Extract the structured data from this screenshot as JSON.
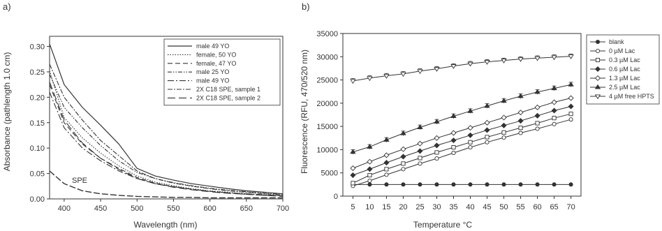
{
  "chart_data": [
    {
      "type": "line",
      "panel_label": "a)",
      "xlabel": "Wavelength  (nm)",
      "ylabel": "Absorbance (pathlength 1.0 cm)",
      "xlim": [
        380,
        700
      ],
      "ylim": [
        0.0,
        0.32
      ],
      "xticks": [
        400,
        450,
        500,
        550,
        600,
        650,
        700
      ],
      "yticks": [
        0.0,
        0.05,
        0.1,
        0.15,
        0.2,
        0.25,
        0.3
      ],
      "grid": false,
      "legend_position": "top-right",
      "annotation": "SPE",
      "series": [
        {
          "name": "male 49 YO",
          "x": [
            380,
            400,
            425,
            450,
            475,
            500,
            525,
            550,
            575,
            600,
            625,
            650,
            675,
            700
          ],
          "y": [
            0.305,
            0.225,
            0.18,
            0.145,
            0.108,
            0.06,
            0.045,
            0.037,
            0.03,
            0.025,
            0.02,
            0.016,
            0.013,
            0.01
          ]
        },
        {
          "name": "female, 50 YO",
          "x": [
            380,
            400,
            425,
            450,
            475,
            500,
            525,
            550,
            575,
            600,
            625,
            650,
            675,
            700
          ],
          "y": [
            0.252,
            0.16,
            0.12,
            0.09,
            0.065,
            0.045,
            0.033,
            0.026,
            0.02,
            0.016,
            0.013,
            0.01,
            0.008,
            0.006
          ]
        },
        {
          "name": "female, 47 YO",
          "x": [
            380,
            400,
            425,
            450,
            475,
            500,
            525,
            550,
            575,
            600,
            625,
            650,
            675,
            700
          ],
          "y": [
            0.225,
            0.15,
            0.108,
            0.08,
            0.06,
            0.042,
            0.031,
            0.024,
            0.019,
            0.015,
            0.012,
            0.009,
            0.007,
            0.006
          ]
        },
        {
          "name": "male 25 YO",
          "x": [
            380,
            400,
            425,
            450,
            475,
            500,
            525,
            550,
            575,
            600,
            625,
            650,
            675,
            700
          ],
          "y": [
            0.245,
            0.18,
            0.14,
            0.105,
            0.075,
            0.052,
            0.04,
            0.032,
            0.026,
            0.021,
            0.017,
            0.014,
            0.011,
            0.009
          ]
        },
        {
          "name": "male 49 YO",
          "x": [
            380,
            400,
            425,
            450,
            475,
            500,
            525,
            550,
            575,
            600,
            625,
            650,
            675,
            700
          ],
          "y": [
            0.21,
            0.14,
            0.1,
            0.075,
            0.055,
            0.04,
            0.03,
            0.024,
            0.019,
            0.015,
            0.012,
            0.01,
            0.008,
            0.006
          ]
        },
        {
          "name": "2X C18 SPE, sample 1",
          "x": [
            380,
            400,
            425,
            450,
            475,
            500,
            525,
            550,
            575,
            600,
            625,
            650,
            675,
            700
          ],
          "y": [
            0.265,
            0.2,
            0.155,
            0.115,
            0.085,
            0.055,
            0.04,
            0.031,
            0.025,
            0.02,
            0.016,
            0.013,
            0.01,
            0.008
          ]
        },
        {
          "name": "2X C18 SPE, sample 2",
          "x": [
            380,
            400,
            425,
            450,
            475,
            500,
            525,
            550,
            575,
            600,
            625,
            650,
            675,
            700
          ],
          "y": [
            0.23,
            0.155,
            0.11,
            0.08,
            0.058,
            0.04,
            0.03,
            0.023,
            0.018,
            0.014,
            0.011,
            0.009,
            0.007,
            0.005
          ]
        },
        {
          "name": "",
          "x": [
            380,
            400,
            425,
            450,
            475,
            500,
            525,
            550,
            575,
            600,
            625,
            650,
            675,
            700
          ],
          "y": [
            0.055,
            0.03,
            0.016,
            0.01,
            0.007,
            0.005,
            0.004,
            0.003,
            0.003,
            0.002,
            0.002,
            0.002,
            0.002,
            0.002
          ]
        }
      ]
    },
    {
      "type": "line",
      "panel_label": "b)",
      "xlabel": "Temperature  °C",
      "ylabel": "Fluorescence (RFU, 470/520 nm)",
      "xlim": [
        2,
        73
      ],
      "ylim": [
        0,
        35000
      ],
      "xticks": [
        5,
        10,
        15,
        20,
        25,
        30,
        35,
        40,
        45,
        50,
        55,
        60,
        65,
        70
      ],
      "yticks": [
        0,
        5000,
        10000,
        15000,
        20000,
        25000,
        30000,
        35000
      ],
      "grid": false,
      "legend_position": "right",
      "categories": [
        5,
        10,
        15,
        20,
        25,
        30,
        35,
        40,
        45,
        50,
        55,
        60,
        65,
        70
      ],
      "series": [
        {
          "name": "blank",
          "marker": "filled-circle",
          "values": [
            2500,
            2500,
            2500,
            2500,
            2500,
            2500,
            2500,
            2500,
            2500,
            2500,
            2500,
            2500,
            2500,
            2500
          ]
        },
        {
          "name": "0 µM Lac",
          "marker": "open-circle",
          "values": [
            2200,
            3300,
            4600,
            5800,
            7000,
            8100,
            9300,
            10500,
            11600,
            12600,
            13600,
            14500,
            15500,
            16500
          ]
        },
        {
          "name": "0.3 µM Lac",
          "marker": "open-square",
          "values": [
            2800,
            4500,
            5800,
            7000,
            8200,
            9400,
            10500,
            11600,
            12700,
            13700,
            14700,
            15700,
            16800,
            17700
          ]
        },
        {
          "name": "0.6 µM Lac",
          "marker": "filled-diamond",
          "values": [
            4500,
            5800,
            7200,
            8500,
            9700,
            10900,
            12000,
            13100,
            14200,
            15200,
            16200,
            17300,
            18400,
            19300
          ]
        },
        {
          "name": "1.3 µM Lac",
          "marker": "open-diamond",
          "values": [
            6000,
            7400,
            8800,
            10100,
            11300,
            12500,
            13600,
            14700,
            15800,
            16900,
            18000,
            19100,
            20200,
            21100
          ]
        },
        {
          "name": "2.5 µM Lac",
          "marker": "filled-triangle",
          "values": [
            9500,
            10600,
            12100,
            13500,
            14800,
            16000,
            17200,
            18300,
            19400,
            20500,
            21500,
            22400,
            23200,
            24000
          ]
        },
        {
          "name": "4 µM free HPTS",
          "marker": "open-triangle-down",
          "values": [
            24800,
            25400,
            25900,
            26300,
            26900,
            27400,
            28000,
            28500,
            28900,
            29200,
            29500,
            29700,
            29900,
            30100
          ]
        }
      ]
    }
  ]
}
